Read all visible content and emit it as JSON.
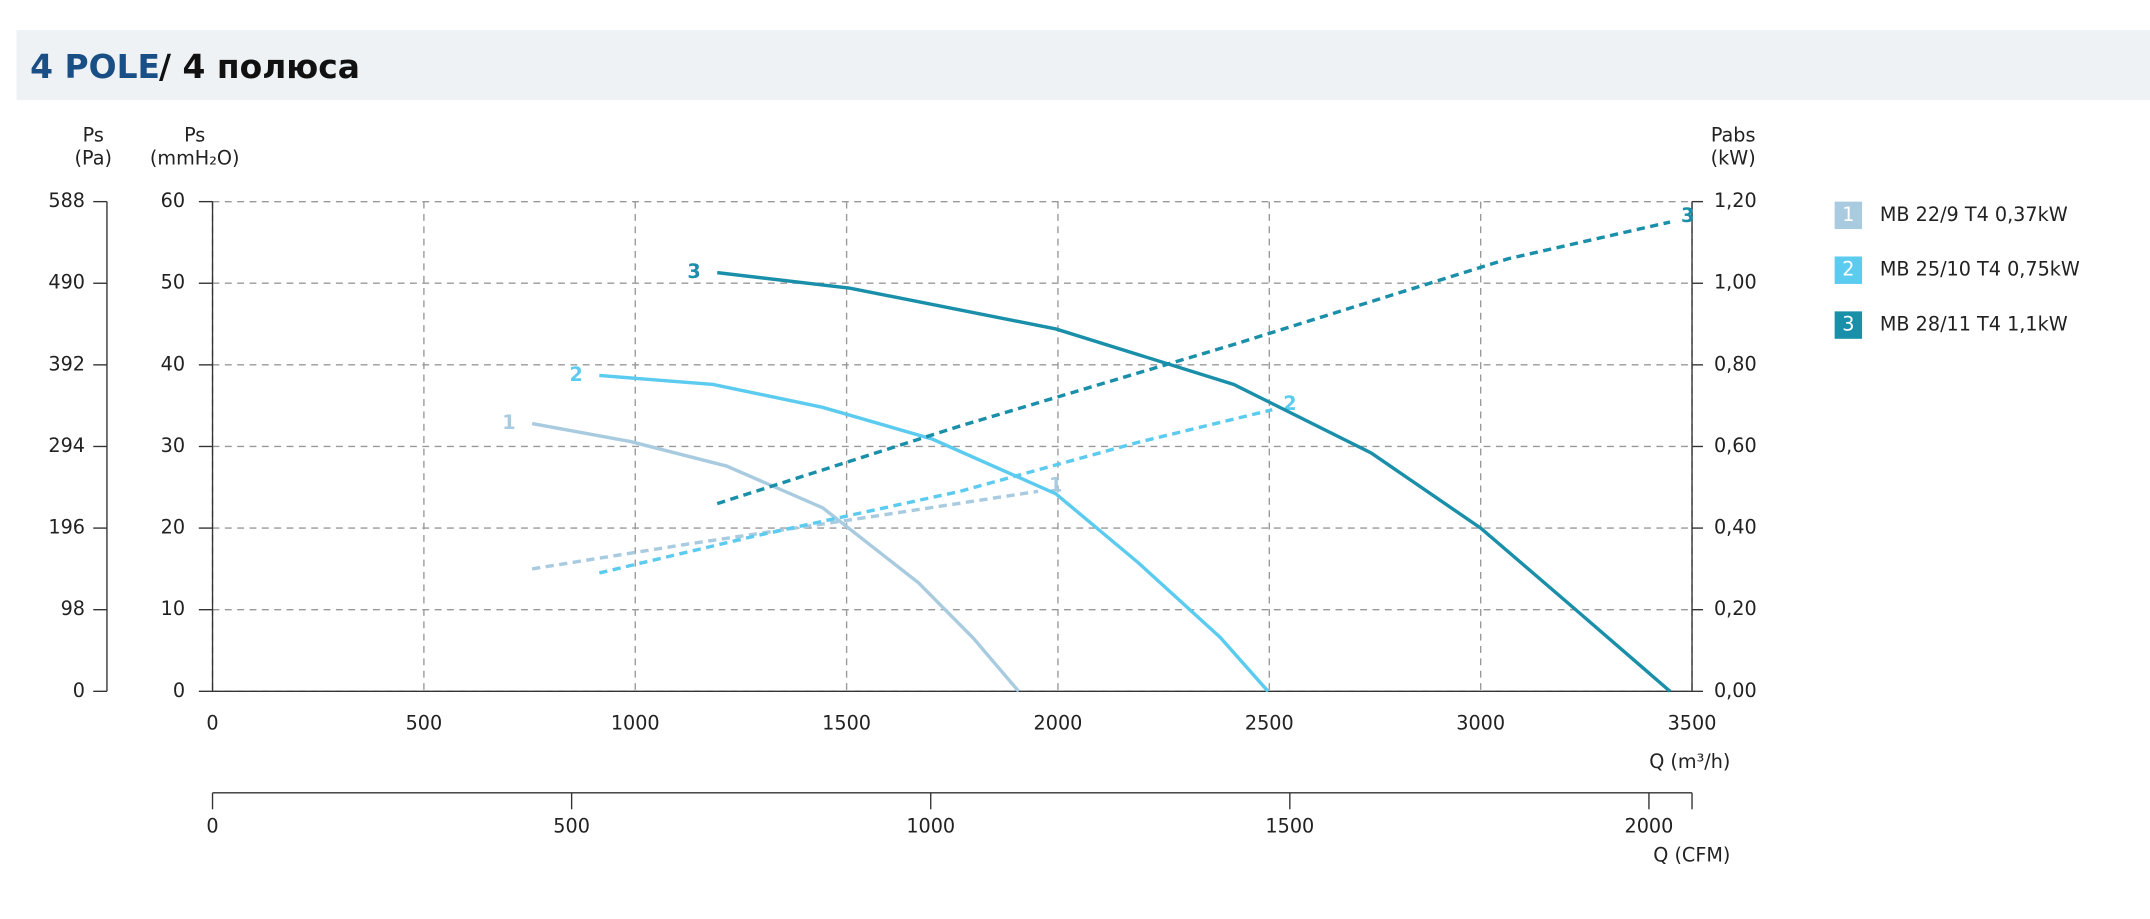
{
  "chart_data": {
    "type": "line",
    "title": "4 POLE",
    "subtitle": "/ 4 полюса",
    "x_label": "Q (m³/h)",
    "xlim": [
      0,
      3500
    ],
    "xticks": [
      0,
      500,
      1000,
      1500,
      2000,
      2500,
      3000,
      3500
    ],
    "y_label": [
      "Ps",
      "(mmH₂O)"
    ],
    "ylim": [
      0,
      60
    ],
    "yticks": [
      0,
      10,
      20,
      30,
      40,
      50,
      60
    ],
    "pa_label": [
      "Ps",
      "(Pa)"
    ],
    "pa_lim": [
      0,
      588
    ],
    "pa_ticks": [
      0,
      98,
      196,
      294,
      392,
      490,
      588
    ],
    "y2_label": [
      "Pabs",
      "(kW)"
    ],
    "y2lim": [
      0,
      1.2
    ],
    "y2ticks": [
      {
        "value": 0,
        "label": "0,00"
      },
      {
        "value": 0.2,
        "label": "0,20"
      },
      {
        "value": 0.4,
        "label": "0,40"
      },
      {
        "value": 0.6,
        "label": "0,60"
      },
      {
        "value": 0.8,
        "label": "0,80"
      },
      {
        "value": 1.0,
        "label": "1,00"
      },
      {
        "value": 1.2,
        "label": "1,20"
      }
    ],
    "x2_label": "Q (CFM)",
    "x2lim": [
      0,
      2060
    ],
    "x2ticks": [
      0,
      500,
      1000,
      1500,
      2000
    ],
    "grid": true,
    "series": [
      {
        "name": "MB 22/9 T4 0,37kW",
        "label": "1",
        "color": "#a9cbe0",
        "x": [
          756,
          989,
          1216,
          1443,
          1670,
          1800,
          1907
        ],
        "values": [
          32.8,
          30.6,
          27.6,
          22.5,
          13.3,
          6.5,
          0
        ],
        "power": {
          "axis": "y2",
          "x": [
            756,
            1119,
            1508,
            1953
          ],
          "values": [
            0.3,
            0.36,
            0.42,
            0.49
          ]
        }
      },
      {
        "name": "MB 25/10 T4 0,75kW",
        "label": "2",
        "color": "#5bcbef",
        "x": [
          915,
          1184,
          1443,
          1703,
          1995,
          2189,
          2384,
          2497
        ],
        "values": [
          38.7,
          37.6,
          34.8,
          30.9,
          24.2,
          15.8,
          6.6,
          0
        ],
        "power": {
          "axis": "y2",
          "x": [
            915,
            1281,
            1768,
            2189,
            2507
          ],
          "values": [
            0.29,
            0.38,
            0.49,
            0.61,
            0.69
          ]
        }
      },
      {
        "name": "MB 28/11 T4 1,1kW",
        "label": "3",
        "color": "#1a8faa",
        "x": [
          1194,
          1508,
          1995,
          2416,
          2741,
          3000,
          3227,
          3448
        ],
        "values": [
          51.3,
          49.4,
          44.4,
          37.6,
          29.2,
          20.0,
          9.9,
          0
        ],
        "power": {
          "axis": "y2",
          "x": [
            1194,
            1768,
            2416,
            3065,
            3448
          ],
          "values": [
            0.46,
            0.65,
            0.85,
            1.06,
            1.15
          ]
        }
      }
    ]
  }
}
